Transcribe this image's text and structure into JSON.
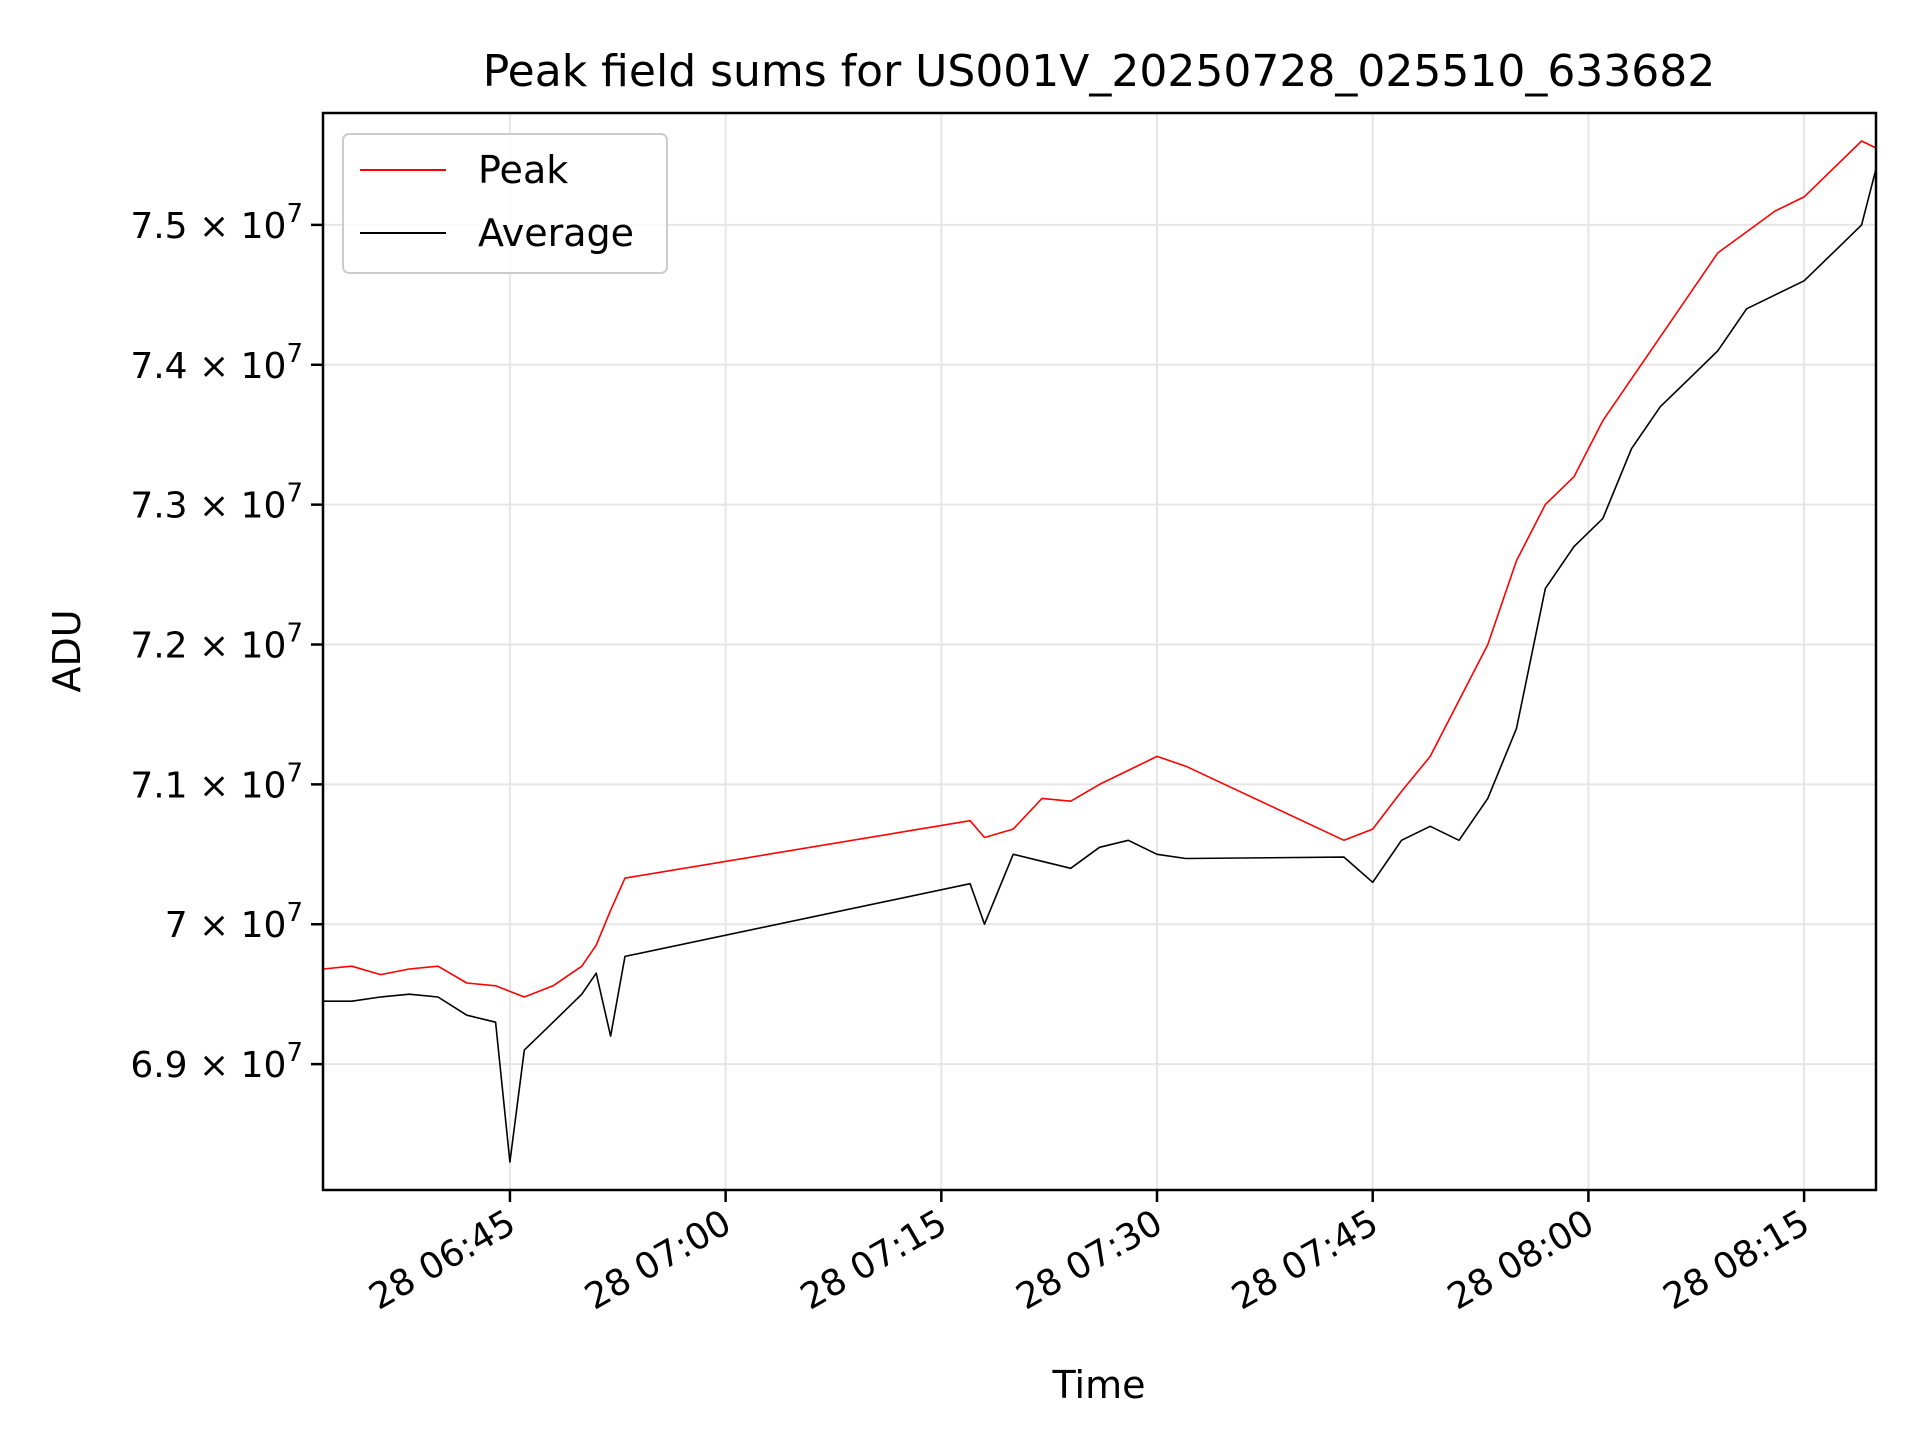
{
  "chart_data": {
    "type": "line",
    "title": "Peak field sums for US001V_20250728_025510_633682",
    "xlabel": "Time",
    "ylabel": "ADU",
    "x_range": [
      "2025-07-28T06:32:00",
      "2025-07-28T08:20:00"
    ],
    "ylim": [
      68100000,
      75800000
    ],
    "x_ticks": [
      {
        "t": "2025-07-28T06:45:00",
        "label": "28 06:45"
      },
      {
        "t": "2025-07-28T07:00:00",
        "label": "28 07:00"
      },
      {
        "t": "2025-07-28T07:15:00",
        "label": "28 07:15"
      },
      {
        "t": "2025-07-28T07:30:00",
        "label": "28 07:30"
      },
      {
        "t": "2025-07-28T07:45:00",
        "label": "28 07:45"
      },
      {
        "t": "2025-07-28T08:00:00",
        "label": "28 08:00"
      },
      {
        "t": "2025-07-28T08:15:00",
        "label": "28 08:15"
      }
    ],
    "y_ticks": [
      {
        "v": 69000000,
        "mant": "6.9",
        "exp": "7"
      },
      {
        "v": 70000000,
        "mant": "7",
        "exp": "7"
      },
      {
        "v": 71000000,
        "mant": "7.1",
        "exp": "7"
      },
      {
        "v": 72000000,
        "mant": "7.2",
        "exp": "7"
      },
      {
        "v": 73000000,
        "mant": "7.3",
        "exp": "7"
      },
      {
        "v": 74000000,
        "mant": "7.4",
        "exp": "7"
      },
      {
        "v": 75000000,
        "mant": "7.5",
        "exp": "7"
      }
    ],
    "grid": true,
    "legend_position": "top-left",
    "series": [
      {
        "name": "Peak",
        "color": "#ff0000",
        "points": [
          [
            "2025-07-28T06:32:00",
            69680000
          ],
          [
            "2025-07-28T06:34:00",
            69700000
          ],
          [
            "2025-07-28T06:36:00",
            69640000
          ],
          [
            "2025-07-28T06:38:00",
            69680000
          ],
          [
            "2025-07-28T06:40:00",
            69700000
          ],
          [
            "2025-07-28T06:42:00",
            69580000
          ],
          [
            "2025-07-28T06:44:00",
            69560000
          ],
          [
            "2025-07-28T06:46:00",
            69480000
          ],
          [
            "2025-07-28T06:48:00",
            69560000
          ],
          [
            "2025-07-28T06:50:00",
            69700000
          ],
          [
            "2025-07-28T06:51:00",
            69850000
          ],
          [
            "2025-07-28T06:52:00",
            70100000
          ],
          [
            "2025-07-28T06:53:00",
            70330000
          ],
          [
            "2025-07-28T07:17:00",
            70740000
          ],
          [
            "2025-07-28T07:18:00",
            70620000
          ],
          [
            "2025-07-28T07:20:00",
            70680000
          ],
          [
            "2025-07-28T07:22:00",
            70900000
          ],
          [
            "2025-07-28T07:24:00",
            70880000
          ],
          [
            "2025-07-28T07:26:00",
            71000000
          ],
          [
            "2025-07-28T07:28:00",
            71100000
          ],
          [
            "2025-07-28T07:30:00",
            71200000
          ],
          [
            "2025-07-28T07:32:00",
            71130000
          ],
          [
            "2025-07-28T07:43:00",
            70600000
          ],
          [
            "2025-07-28T07:45:00",
            70680000
          ],
          [
            "2025-07-28T07:47:00",
            70950000
          ],
          [
            "2025-07-28T07:49:00",
            71200000
          ],
          [
            "2025-07-28T07:51:00",
            71600000
          ],
          [
            "2025-07-28T07:53:00",
            72000000
          ],
          [
            "2025-07-28T07:55:00",
            72600000
          ],
          [
            "2025-07-28T07:57:00",
            73000000
          ],
          [
            "2025-07-28T07:59:00",
            73200000
          ],
          [
            "2025-07-28T08:01:00",
            73600000
          ],
          [
            "2025-07-28T08:03:00",
            73900000
          ],
          [
            "2025-07-28T08:05:00",
            74200000
          ],
          [
            "2025-07-28T08:07:00",
            74500000
          ],
          [
            "2025-07-28T08:09:00",
            74800000
          ],
          [
            "2025-07-28T08:11:00",
            74950000
          ],
          [
            "2025-07-28T08:13:00",
            75100000
          ],
          [
            "2025-07-28T08:15:00",
            75200000
          ],
          [
            "2025-07-28T08:17:00",
            75400000
          ],
          [
            "2025-07-28T08:19:00",
            75600000
          ],
          [
            "2025-07-28T08:20:00",
            75550000
          ]
        ]
      },
      {
        "name": "Average",
        "color": "#000000",
        "points": [
          [
            "2025-07-28T06:32:00",
            69450000
          ],
          [
            "2025-07-28T06:34:00",
            69450000
          ],
          [
            "2025-07-28T06:36:00",
            69480000
          ],
          [
            "2025-07-28T06:38:00",
            69500000
          ],
          [
            "2025-07-28T06:40:00",
            69480000
          ],
          [
            "2025-07-28T06:42:00",
            69350000
          ],
          [
            "2025-07-28T06:44:00",
            69300000
          ],
          [
            "2025-07-28T06:45:00",
            68300000
          ],
          [
            "2025-07-28T06:46:00",
            69100000
          ],
          [
            "2025-07-28T06:48:00",
            69300000
          ],
          [
            "2025-07-28T06:50:00",
            69500000
          ],
          [
            "2025-07-28T06:51:00",
            69650000
          ],
          [
            "2025-07-28T06:52:00",
            69200000
          ],
          [
            "2025-07-28T06:53:00",
            69770000
          ],
          [
            "2025-07-28T07:17:00",
            70290000
          ],
          [
            "2025-07-28T07:18:00",
            70000000
          ],
          [
            "2025-07-28T07:20:00",
            70500000
          ],
          [
            "2025-07-28T07:22:00",
            70450000
          ],
          [
            "2025-07-28T07:24:00",
            70400000
          ],
          [
            "2025-07-28T07:26:00",
            70550000
          ],
          [
            "2025-07-28T07:28:00",
            70600000
          ],
          [
            "2025-07-28T07:30:00",
            70500000
          ],
          [
            "2025-07-28T07:32:00",
            70470000
          ],
          [
            "2025-07-28T07:43:00",
            70480000
          ],
          [
            "2025-07-28T07:45:00",
            70300000
          ],
          [
            "2025-07-28T07:47:00",
            70600000
          ],
          [
            "2025-07-28T07:49:00",
            70700000
          ],
          [
            "2025-07-28T07:51:00",
            70600000
          ],
          [
            "2025-07-28T07:53:00",
            70900000
          ],
          [
            "2025-07-28T07:55:00",
            71400000
          ],
          [
            "2025-07-28T07:57:00",
            72400000
          ],
          [
            "2025-07-28T07:59:00",
            72700000
          ],
          [
            "2025-07-28T08:01:00",
            72900000
          ],
          [
            "2025-07-28T08:03:00",
            73400000
          ],
          [
            "2025-07-28T08:05:00",
            73700000
          ],
          [
            "2025-07-28T08:07:00",
            73900000
          ],
          [
            "2025-07-28T08:09:00",
            74100000
          ],
          [
            "2025-07-28T08:11:00",
            74400000
          ],
          [
            "2025-07-28T08:13:00",
            74500000
          ],
          [
            "2025-07-28T08:15:00",
            74600000
          ],
          [
            "2025-07-28T08:17:00",
            74800000
          ],
          [
            "2025-07-28T08:19:00",
            75000000
          ],
          [
            "2025-07-28T08:20:00",
            75400000
          ]
        ]
      }
    ]
  }
}
